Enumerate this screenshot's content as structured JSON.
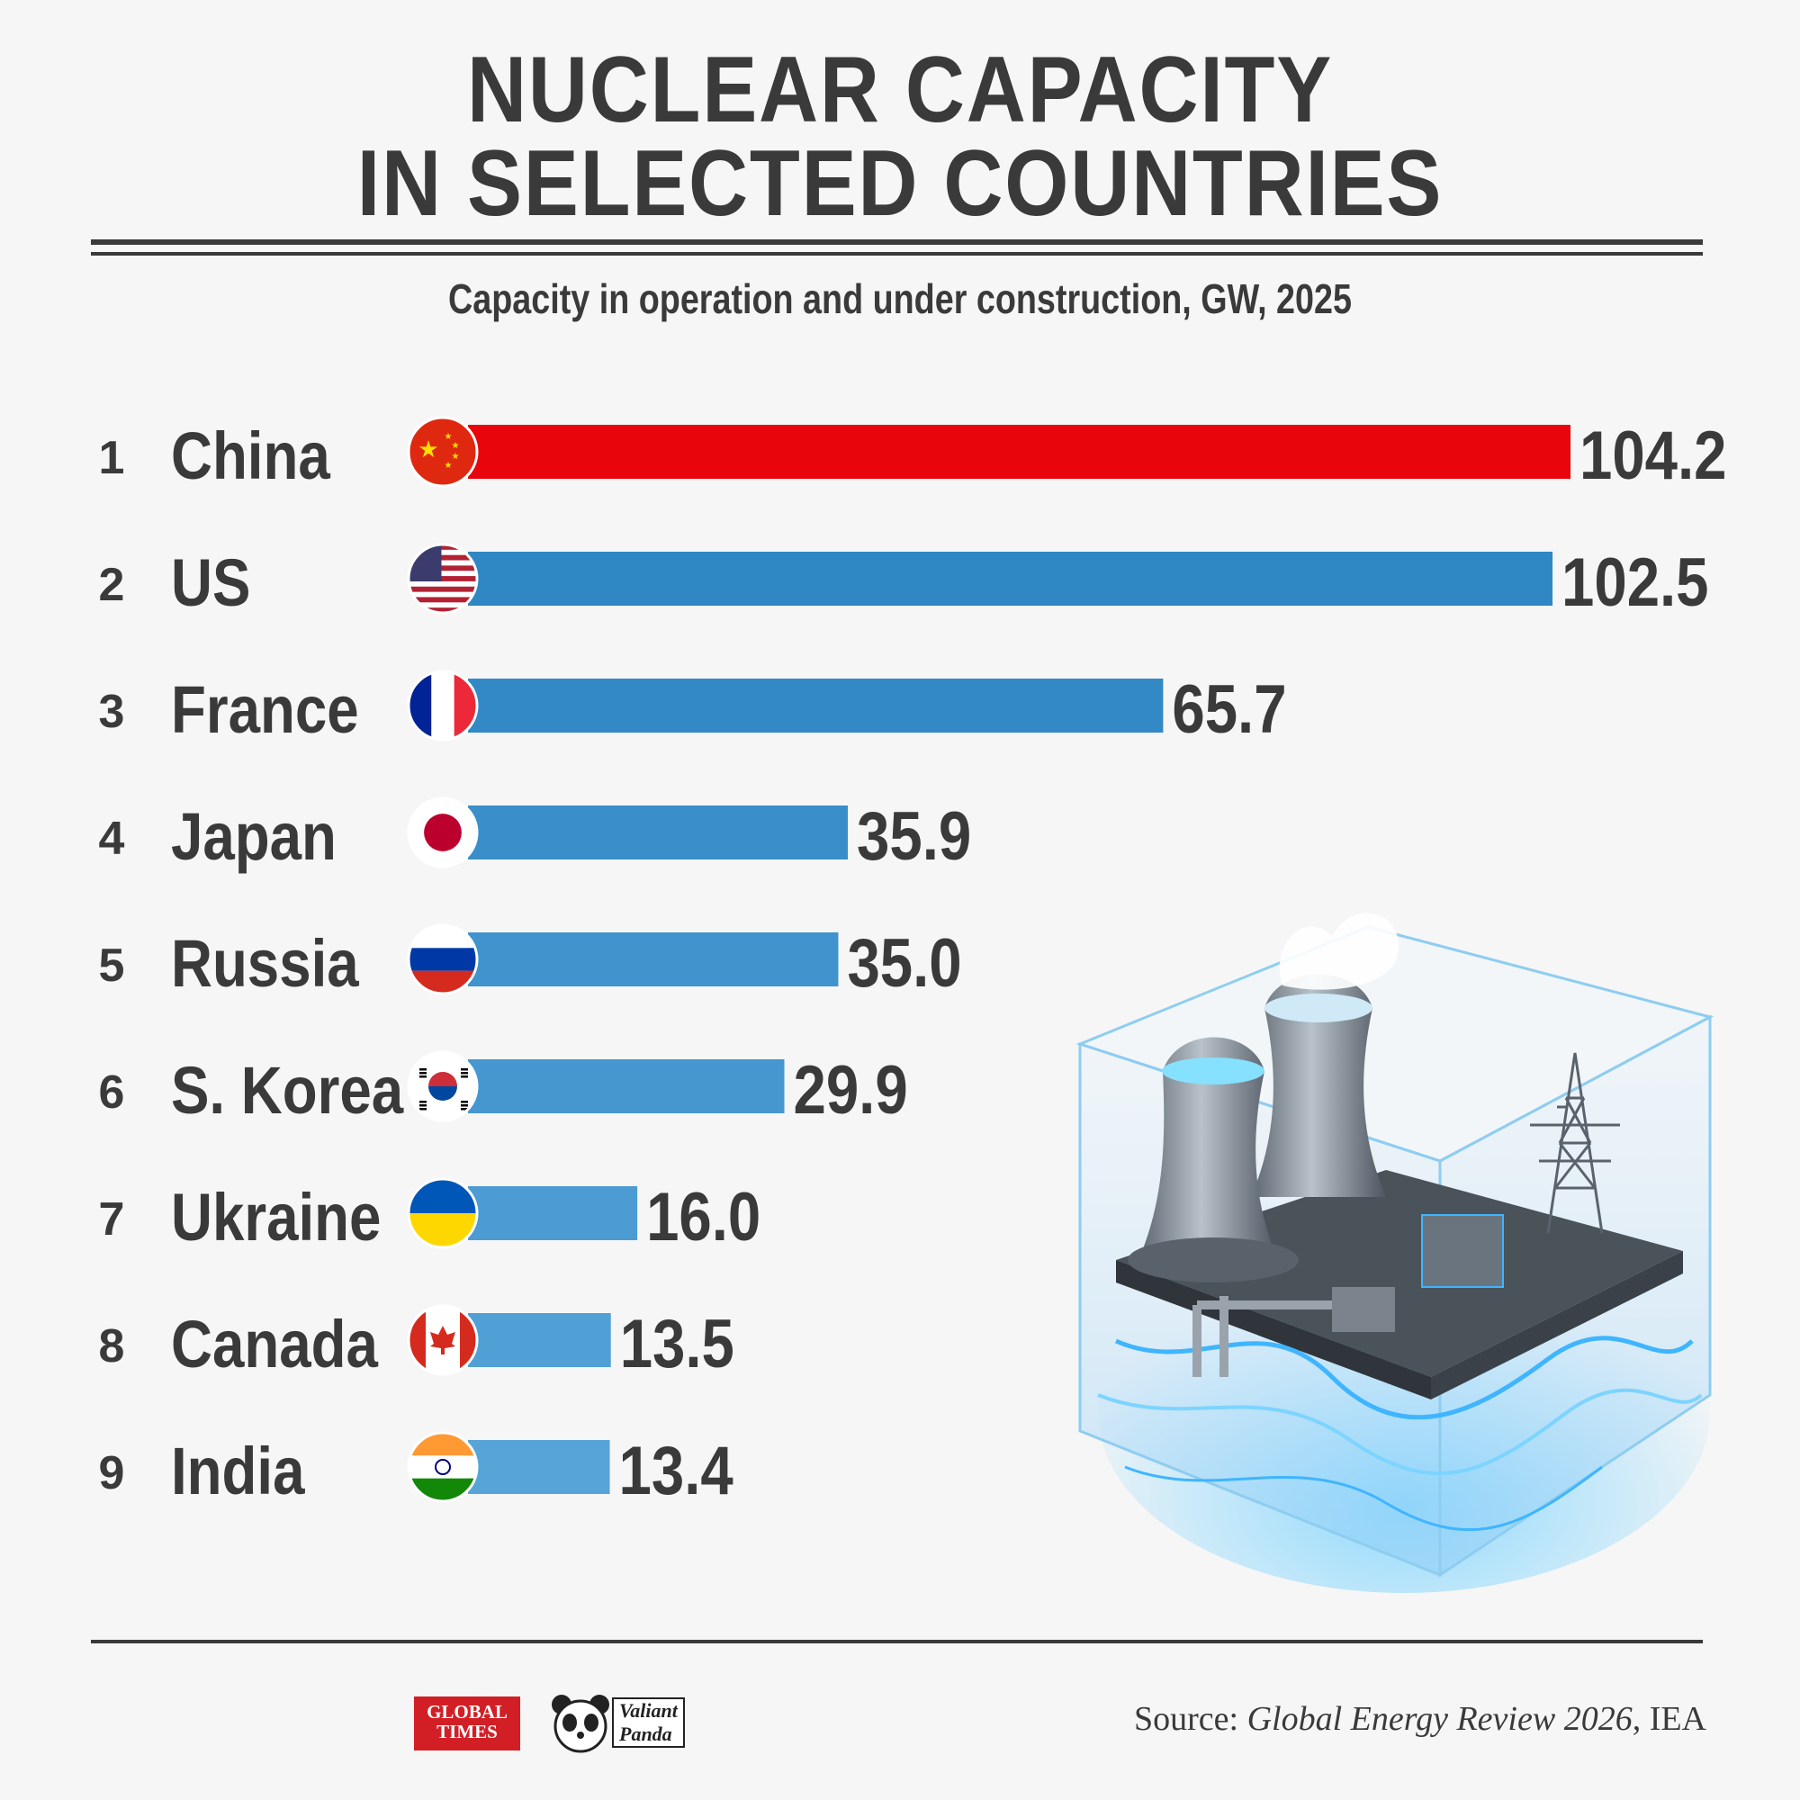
{
  "header": {
    "title_line1": "NUCLEAR CAPACITY",
    "title_line2": "IN SELECTED COUNTRIES",
    "subtitle": "Capacity in operation and under construction, GW, 2025"
  },
  "chart_data": {
    "type": "bar",
    "orientation": "horizontal",
    "title": "NUCLEAR CAPACITY IN SELECTED COUNTRIES",
    "subtitle": "Capacity in operation and under construction, GW, 2025",
    "categories": [
      "China",
      "US",
      "France",
      "Japan",
      "Russia",
      "S. Korea",
      "Ukraine",
      "Canada",
      "India"
    ],
    "ranks": [
      "1",
      "2",
      "3",
      "4",
      "5",
      "6",
      "7",
      "8",
      "9"
    ],
    "values": [
      104.2,
      102.5,
      65.7,
      35.9,
      35.0,
      29.9,
      16.0,
      13.5,
      13.4
    ],
    "value_labels": [
      "104.2",
      "102.5",
      "65.7",
      "35.9",
      "35.0",
      "29.9",
      "16.0",
      "13.5",
      "13.4"
    ],
    "bar_colors": [
      "#e8050b",
      "#2f87c4",
      "#3389c6",
      "#3a8fca",
      "#4093cc",
      "#4697cf",
      "#4c9bd2",
      "#51a0d5",
      "#56a4d8"
    ],
    "flags": [
      "china-flag",
      "us-flag",
      "france-flag",
      "japan-flag",
      "russia-flag",
      "south-korea-flag",
      "ukraine-flag",
      "canada-flag",
      "india-flag"
    ],
    "xlim": [
      0,
      104.2
    ],
    "grid": false,
    "legend": "none"
  },
  "footer": {
    "logo1_text": "GLOBAL TIMES",
    "logo2_line1": "Valiant",
    "logo2_line2": "Panda",
    "source_prefix": "Source: ",
    "source_title": "Global Energy Review 2026",
    "source_suffix": ", IEA"
  }
}
